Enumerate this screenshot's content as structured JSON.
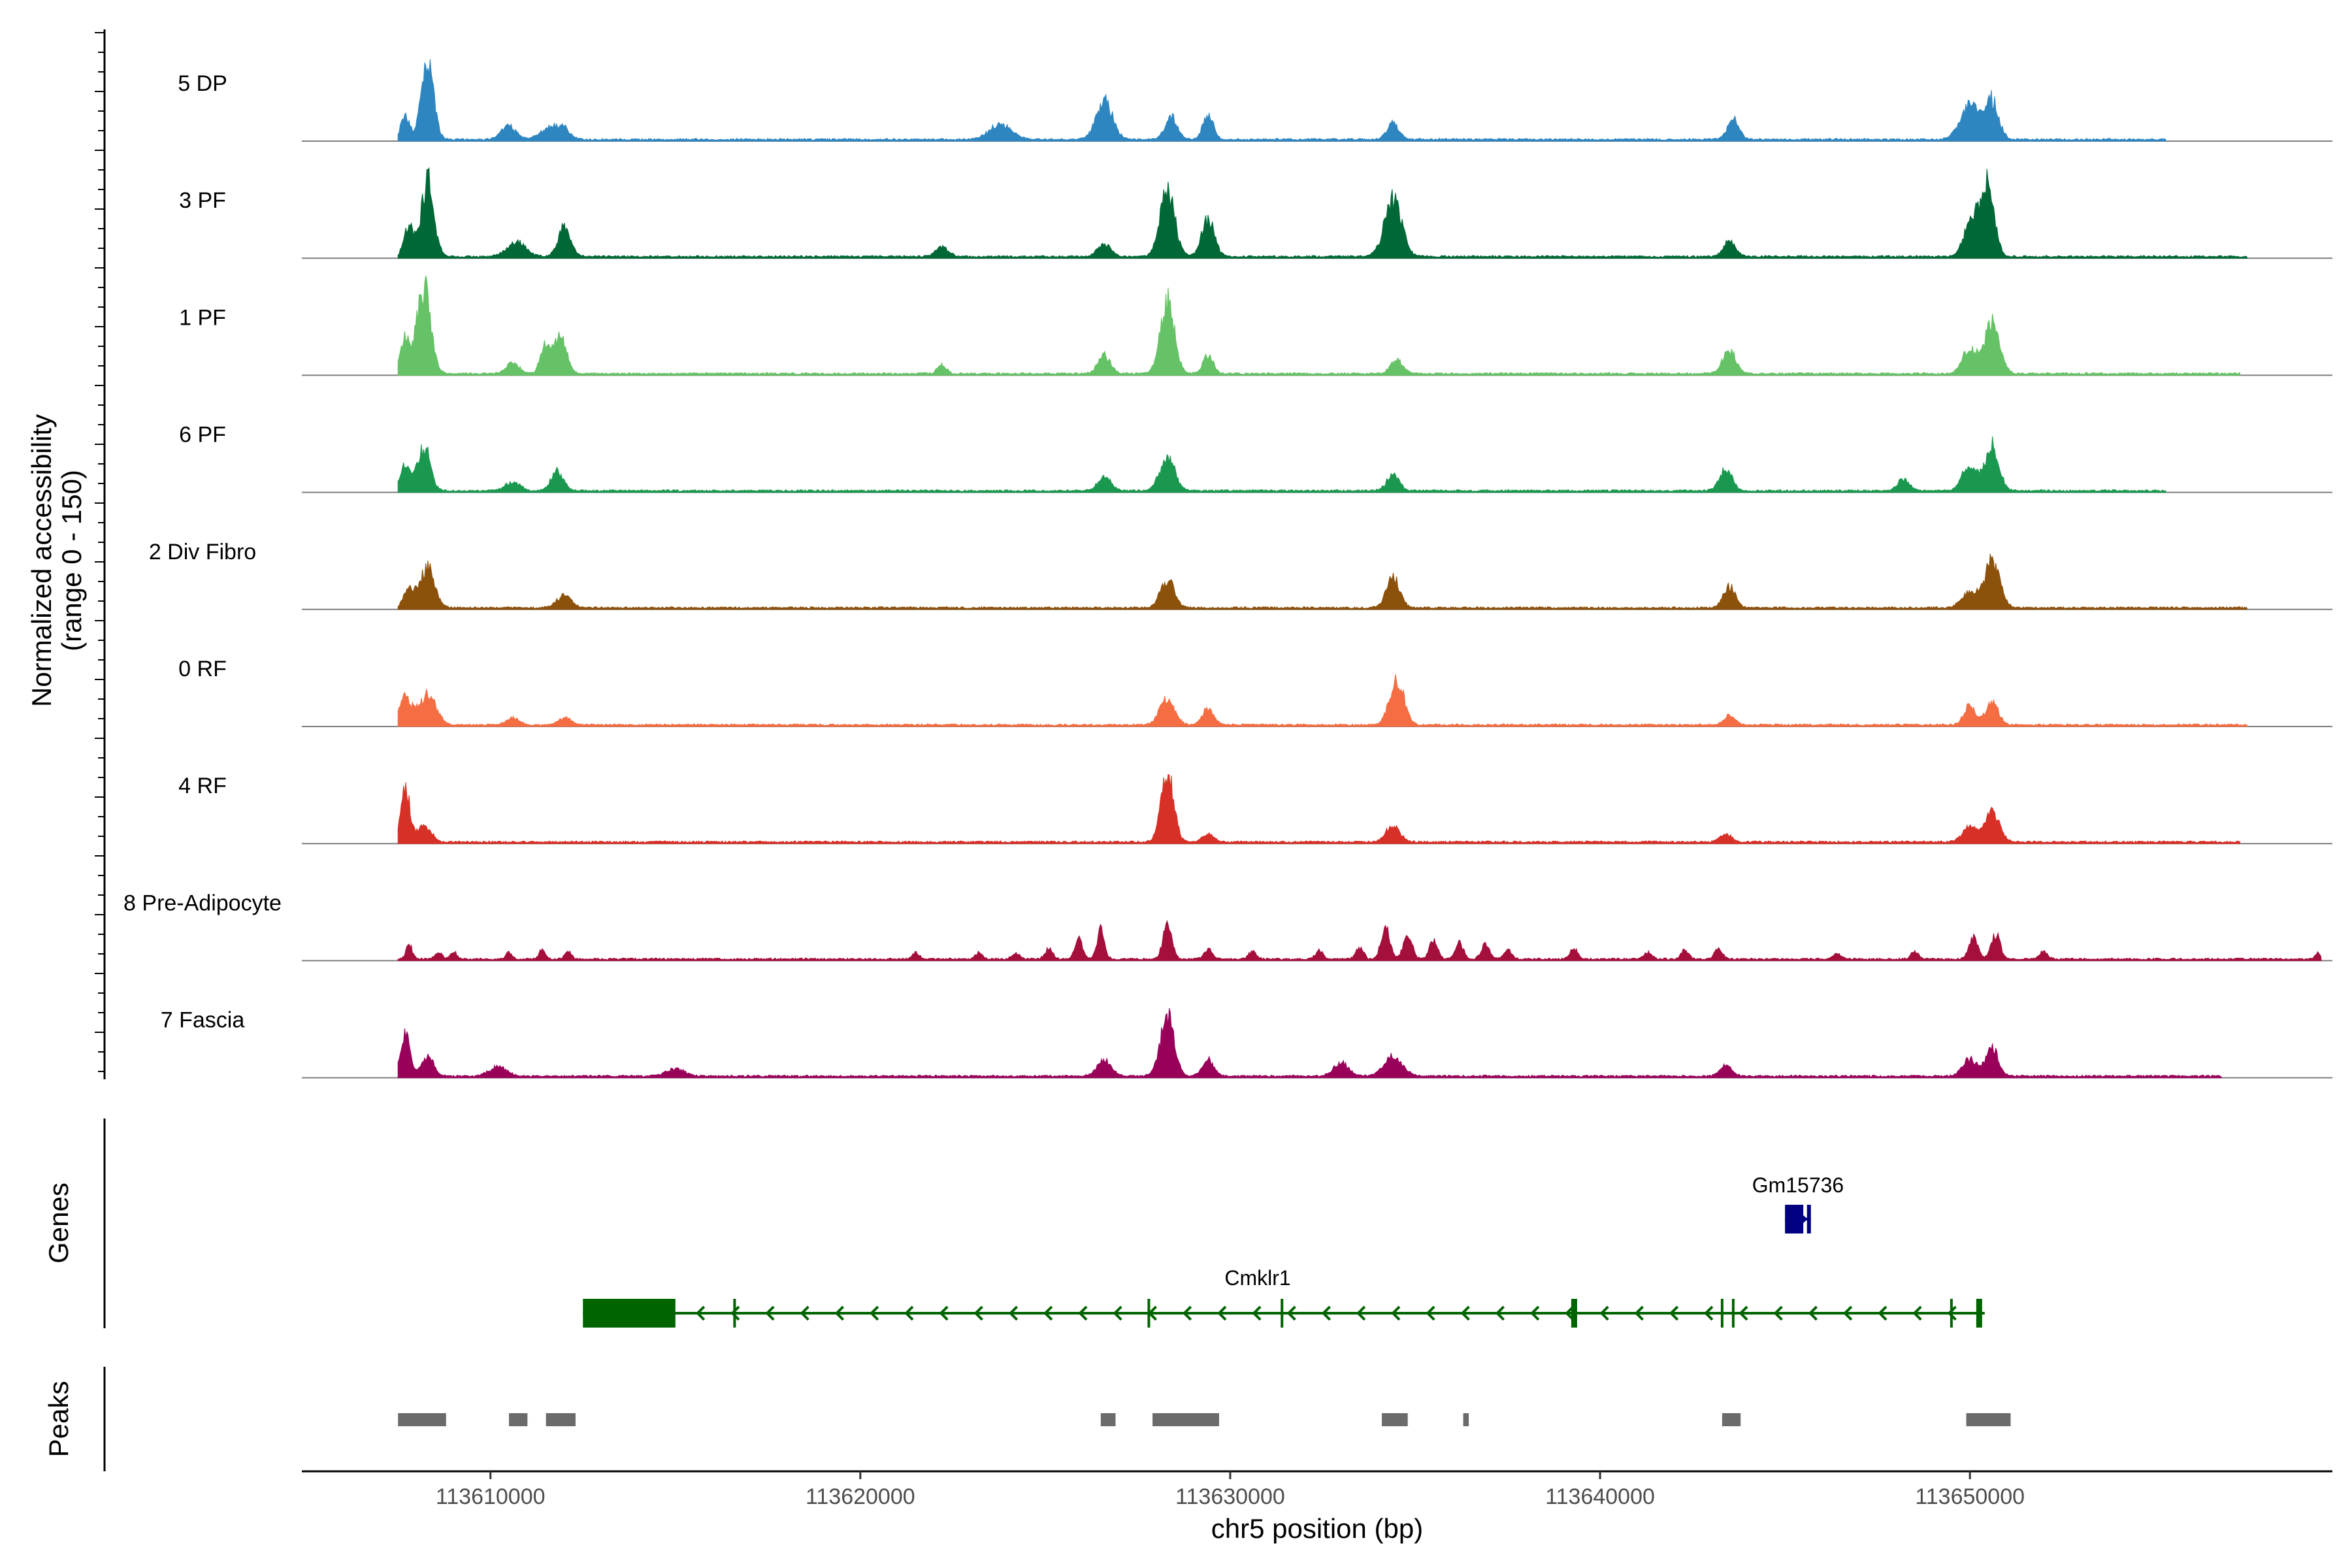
{
  "chart_data": {
    "type": "area",
    "title": "",
    "chromosome": "chr5",
    "xlabel": "chr5 position (bp)",
    "ylabel": "Normalized accessibility",
    "ylabel_sub": "(range 0 - 150)",
    "xlim": [
      113604900,
      113659800
    ],
    "ylim": [
      0,
      150
    ],
    "x_ticks": [
      113610000,
      113620000,
      113630000,
      113640000,
      113650000
    ],
    "x_tick_labels": [
      "113610000",
      "113620000",
      "113630000",
      "113640000",
      "113650000"
    ],
    "tracks": [
      {
        "name": "5 DP",
        "color": "#2e86c1",
        "start": 113607500,
        "end": 113655300,
        "peaks": [
          [
            113607700,
            30,
            120
          ],
          [
            113608300,
            110,
            160
          ],
          [
            113610500,
            18,
            200
          ],
          [
            113611600,
            16,
            250
          ],
          [
            113612000,
            12,
            160
          ],
          [
            113623800,
            20,
            300
          ],
          [
            113626600,
            50,
            220
          ],
          [
            113628400,
            30,
            160
          ],
          [
            113629400,
            32,
            140
          ],
          [
            113634400,
            22,
            160
          ],
          [
            113643600,
            26,
            160
          ],
          [
            113650000,
            45,
            260
          ],
          [
            113650600,
            50,
            180
          ]
        ]
      },
      {
        "name": "3 PF",
        "color": "#006837",
        "start": 113607500,
        "end": 113657500,
        "peaks": [
          [
            113607800,
            40,
            130
          ],
          [
            113608300,
            100,
            170
          ],
          [
            113610700,
            20,
            250
          ],
          [
            113612000,
            38,
            170
          ],
          [
            113622200,
            12,
            180
          ],
          [
            113626600,
            16,
            180
          ],
          [
            113628300,
            85,
            200
          ],
          [
            113629400,
            50,
            170
          ],
          [
            113634400,
            75,
            230
          ],
          [
            113643500,
            20,
            160
          ],
          [
            113650100,
            55,
            220
          ],
          [
            113650500,
            85,
            170
          ]
        ]
      },
      {
        "name": "1 PF",
        "color": "#66c266",
        "start": 113607500,
        "end": 113657300,
        "peaks": [
          [
            113607700,
            45,
            130
          ],
          [
            113608200,
            118,
            180
          ],
          [
            113610600,
            15,
            170
          ],
          [
            113611500,
            40,
            140
          ],
          [
            113611900,
            50,
            160
          ],
          [
            113622200,
            12,
            120
          ],
          [
            113626600,
            24,
            170
          ],
          [
            113628300,
            95,
            190
          ],
          [
            113629400,
            24,
            140
          ],
          [
            113634500,
            17,
            170
          ],
          [
            113643500,
            33,
            170
          ],
          [
            113650000,
            32,
            200
          ],
          [
            113650600,
            65,
            200
          ]
        ]
      },
      {
        "name": "6 PF",
        "color": "#1a9850",
        "start": 113607500,
        "end": 113655300,
        "peaks": [
          [
            113607700,
            35,
            140
          ],
          [
            113608200,
            58,
            170
          ],
          [
            113610600,
            12,
            200
          ],
          [
            113611800,
            25,
            170
          ],
          [
            113626600,
            20,
            170
          ],
          [
            113628300,
            45,
            200
          ],
          [
            113634400,
            22,
            160
          ],
          [
            113643400,
            28,
            170
          ],
          [
            113648200,
            15,
            150
          ],
          [
            113650000,
            35,
            200
          ],
          [
            113650600,
            60,
            180
          ]
        ]
      },
      {
        "name": "2 Div Fibro",
        "color": "#8c510a",
        "start": 113607500,
        "end": 113657500,
        "peaks": [
          [
            113607800,
            25,
            140
          ],
          [
            113608300,
            55,
            190
          ],
          [
            113612000,
            16,
            200
          ],
          [
            113628300,
            38,
            180
          ],
          [
            113634400,
            40,
            180
          ],
          [
            113643500,
            28,
            160
          ],
          [
            113650000,
            20,
            220
          ],
          [
            113650600,
            62,
            200
          ]
        ]
      },
      {
        "name": "0 RF",
        "color": "#f46d43",
        "start": 113607500,
        "end": 113657500,
        "peaks": [
          [
            113607700,
            35,
            160
          ],
          [
            113608300,
            40,
            230
          ],
          [
            113610600,
            10,
            160
          ],
          [
            113612000,
            10,
            160
          ],
          [
            113628300,
            35,
            200
          ],
          [
            113629400,
            22,
            150
          ],
          [
            113634500,
            60,
            190
          ],
          [
            113643500,
            12,
            150
          ],
          [
            113650000,
            25,
            160
          ],
          [
            113650600,
            32,
            160
          ]
        ]
      },
      {
        "name": "4 RF",
        "color": "#d73027",
        "start": 113607500,
        "end": 113657300,
        "peaks": [
          [
            113607700,
            70,
            120
          ],
          [
            113608200,
            22,
            190
          ],
          [
            113628300,
            90,
            170
          ],
          [
            113629400,
            10,
            150
          ],
          [
            113634400,
            22,
            180
          ],
          [
            113643400,
            10,
            150
          ],
          [
            113650000,
            20,
            200
          ],
          [
            113650600,
            38,
            200
          ]
        ]
      },
      {
        "name": "8 Pre-Adipocyte",
        "color": "#a50f3c",
        "start": 113607500,
        "end": 113659500,
        "peaks": [
          [
            113607800,
            20,
            80
          ],
          [
            113608600,
            8,
            100
          ],
          [
            113609000,
            10,
            80
          ],
          [
            113610500,
            10,
            80
          ],
          [
            113611400,
            14,
            80
          ],
          [
            113612100,
            12,
            80
          ],
          [
            113621500,
            8,
            100
          ],
          [
            113623200,
            8,
            100
          ],
          [
            113624200,
            8,
            100
          ],
          [
            113625100,
            14,
            100
          ],
          [
            113625900,
            28,
            100
          ],
          [
            113626500,
            40,
            100
          ],
          [
            113628300,
            45,
            120
          ],
          [
            113629400,
            14,
            100
          ],
          [
            113630600,
            10,
            100
          ],
          [
            113632400,
            12,
            100
          ],
          [
            113633500,
            16,
            100
          ],
          [
            113634200,
            40,
            120
          ],
          [
            113634800,
            30,
            120
          ],
          [
            113635500,
            25,
            110
          ],
          [
            113636200,
            20,
            110
          ],
          [
            113636900,
            20,
            110
          ],
          [
            113637500,
            12,
            100
          ],
          [
            113639300,
            14,
            100
          ],
          [
            113641300,
            8,
            100
          ],
          [
            113642300,
            12,
            100
          ],
          [
            113643200,
            15,
            100
          ],
          [
            113646400,
            8,
            100
          ],
          [
            113648500,
            10,
            100
          ],
          [
            113650100,
            28,
            120
          ],
          [
            113650700,
            32,
            120
          ],
          [
            113652000,
            10,
            100
          ],
          [
            113659400,
            8,
            60
          ]
        ]
      },
      {
        "name": "7 Fascia",
        "color": "#99005a",
        "start": 113607500,
        "end": 113656800,
        "peaks": [
          [
            113607700,
            52,
            130
          ],
          [
            113608300,
            26,
            160
          ],
          [
            113610200,
            12,
            230
          ],
          [
            113615000,
            10,
            250
          ],
          [
            113626600,
            20,
            200
          ],
          [
            113628300,
            78,
            190
          ],
          [
            113629400,
            22,
            150
          ],
          [
            113634400,
            25,
            250
          ],
          [
            113633000,
            18,
            200
          ],
          [
            113643400,
            15,
            150
          ],
          [
            113650000,
            22,
            200
          ],
          [
            113650600,
            38,
            160
          ]
        ]
      }
    ],
    "genes": [
      {
        "name": "Cmklr1",
        "strand": "-",
        "color": "#006400",
        "start": 113612500,
        "end": 113650400,
        "utr": [
          113612500,
          113615000
        ],
        "exon_marks": [
          113616600,
          113627800,
          113631400,
          113639300,
          113643300,
          113643600,
          113649500,
          113650250
        ]
      },
      {
        "name": "Gm15736",
        "strand": "+",
        "color": "#000080",
        "start": 113645000,
        "end": 113645700
      }
    ],
    "peaks_track": [
      [
        113607500,
        113608800
      ],
      [
        113610500,
        113611000
      ],
      [
        113611500,
        113612300
      ],
      [
        113626500,
        113626900
      ],
      [
        113627900,
        113629700
      ],
      [
        113634100,
        113634800
      ],
      [
        113636300,
        113636450
      ],
      [
        113643300,
        113643800
      ],
      [
        113649900,
        113651100
      ]
    ],
    "side_labels": {
      "genes": "Genes",
      "peaks": "Peaks"
    },
    "colors": {
      "baseline": "#7f7f7f",
      "peaks": "#6b6b6b",
      "axis": "#000000"
    }
  }
}
